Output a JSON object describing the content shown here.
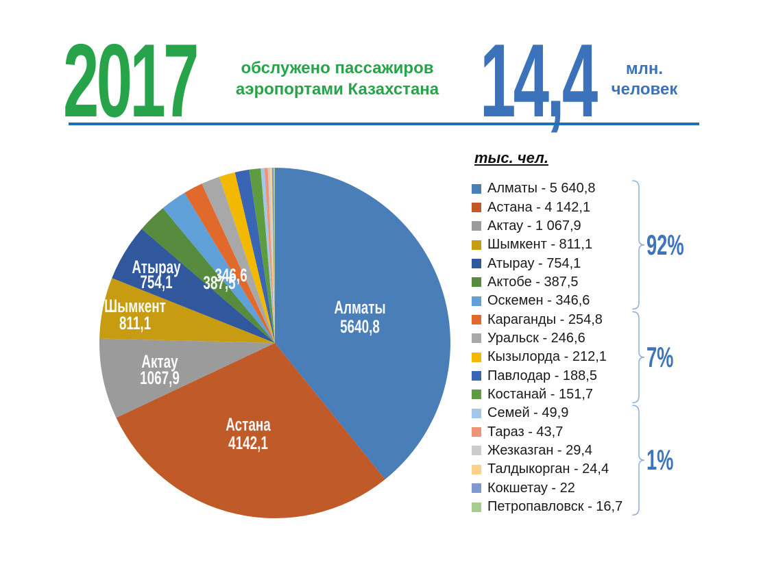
{
  "header": {
    "year": "2017",
    "subtitle_line1": "обслужено пассажиров",
    "subtitle_line2": "аэропортами Казахстана",
    "total_value": "14,4",
    "unit_line1": "млн.",
    "unit_line2": "человек",
    "green": "#27A449",
    "blue": "#3C72BA",
    "rule_color": "#1E70B8"
  },
  "legend": {
    "title": "тыс. чел.",
    "brace_color": "#8FB3DC",
    "percent_color": "#3E74BC"
  },
  "chart_data": {
    "type": "pie",
    "title": "обслужено пассажиров аэропортами Казахстана, 2017",
    "unit": "тыс. чел.",
    "total_shown": "14,4 млн. человек",
    "start_angle_deg": 0,
    "direction": "clockwise",
    "slices": [
      {
        "name": "Алматы",
        "value": 5640.8,
        "legend_label": "Алматы - 5 640,8",
        "pie_value_label": "5640,8",
        "show_name_on_pie": true,
        "color": "#4A7EB8"
      },
      {
        "name": "Астана",
        "value": 4142.1,
        "legend_label": "Астана - 4 142,1",
        "pie_value_label": "4142,1",
        "show_name_on_pie": true,
        "color": "#C05A28"
      },
      {
        "name": "Актау",
        "value": 1067.9,
        "legend_label": "Актау - 1 067,9",
        "pie_value_label": "1067,9",
        "show_name_on_pie": true,
        "color": "#9B9B9B"
      },
      {
        "name": "Шымкент",
        "value": 811.1,
        "legend_label": "Шымкент - 811,1",
        "pie_value_label": "811,1",
        "show_name_on_pie": true,
        "color": "#C79C11"
      },
      {
        "name": "Атырау",
        "value": 754.1,
        "legend_label": "Атырау - 754,1",
        "pie_value_label": "754,1",
        "show_name_on_pie": true,
        "color": "#31589D"
      },
      {
        "name": "Актобе",
        "value": 387.5,
        "legend_label": "Актобе - 387,5",
        "pie_value_label": "387,5",
        "show_name_on_pie": false,
        "color": "#578C3E"
      },
      {
        "name": "Оскемен",
        "value": 346.6,
        "legend_label": "Оскемен - 346,6",
        "pie_value_label": "346,6",
        "show_name_on_pie": false,
        "color": "#5FA0D8"
      },
      {
        "name": "Караганды",
        "value": 254.8,
        "legend_label": "Караганды - 254,8",
        "pie_value_label": "",
        "show_name_on_pie": false,
        "color": "#E2692C"
      },
      {
        "name": "Уральск",
        "value": 246.6,
        "legend_label": "Уральск - 246,6",
        "pie_value_label": "",
        "show_name_on_pie": false,
        "color": "#A8A8A8"
      },
      {
        "name": "Кызылорда",
        "value": 212.1,
        "legend_label": "Кызылорда - 212,1",
        "pie_value_label": "",
        "show_name_on_pie": false,
        "color": "#F3B800"
      },
      {
        "name": "Павлодар",
        "value": 188.5,
        "legend_label": "Павлодар - 188,5",
        "pie_value_label": "",
        "show_name_on_pie": false,
        "color": "#3A64B4"
      },
      {
        "name": "Костанай",
        "value": 151.7,
        "legend_label": "Костанай - 151,7",
        "pie_value_label": "",
        "show_name_on_pie": false,
        "color": "#5F9C41"
      },
      {
        "name": "Семей",
        "value": 49.9,
        "legend_label": "Семей - 49,9",
        "pie_value_label": "",
        "show_name_on_pie": false,
        "color": "#A3C7E8"
      },
      {
        "name": "Тараз",
        "value": 43.7,
        "legend_label": "Тараз - 43,7",
        "pie_value_label": "",
        "show_name_on_pie": false,
        "color": "#EE9577"
      },
      {
        "name": "Жезказган",
        "value": 29.4,
        "legend_label": "Жезказган - 29,4",
        "pie_value_label": "",
        "show_name_on_pie": false,
        "color": "#CBCBCB"
      },
      {
        "name": "Талдыкорган",
        "value": 24.4,
        "legend_label": "Талдыкорган - 24,4",
        "pie_value_label": "",
        "show_name_on_pie": false,
        "color": "#FAD389"
      },
      {
        "name": "Кокшетау",
        "value": 22,
        "legend_label": "Кокшетау - 22",
        "pie_value_label": "",
        "show_name_on_pie": false,
        "color": "#8098D2"
      },
      {
        "name": "Петропавловск",
        "value": 16.7,
        "legend_label": "Петропавловск - 16,7",
        "pie_value_label": "",
        "show_name_on_pie": false,
        "color": "#A8CB8E"
      }
    ],
    "groups": [
      {
        "label": "92%",
        "slice_count": 7
      },
      {
        "label": "7%",
        "slice_count": 5
      },
      {
        "label": "1%",
        "slice_count": 6
      }
    ]
  }
}
